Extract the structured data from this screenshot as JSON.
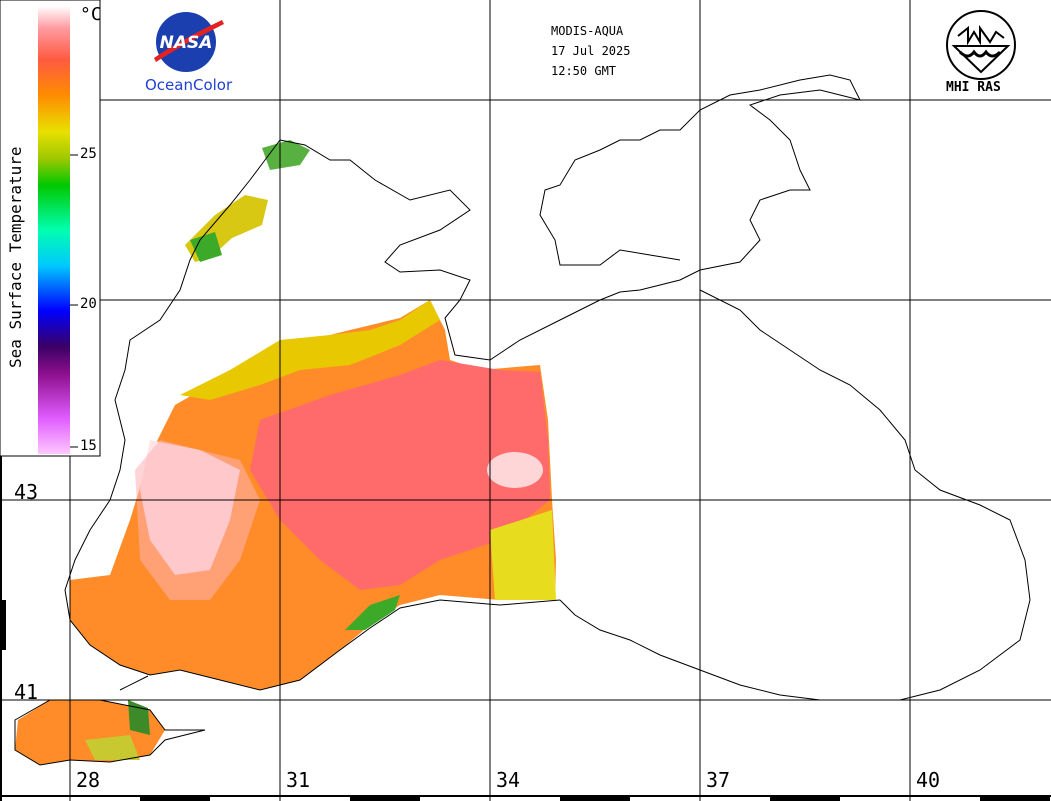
{
  "header": {
    "sensor": "MODIS-AQUA",
    "date": "17 Jul 2025",
    "time": "12:50 GMT"
  },
  "logos": {
    "nasa_text": "NASA",
    "oceancolor_label": "OceanColor",
    "mhi_label": "MHI RAS"
  },
  "colorbar": {
    "title": "Sea Surface Temperature",
    "unit": "°C",
    "ticks": [
      "25",
      "20",
      "15"
    ],
    "min": 15,
    "max": 29,
    "colors": [
      "#ffc8ff",
      "#e05cff",
      "#8c0f8c",
      "#3a0066",
      "#0000ff",
      "#00c8ff",
      "#00ffb0",
      "#00c800",
      "#a0c800",
      "#e8e000",
      "#ff8c00",
      "#ff5a40",
      "#ff9aa0",
      "#ffffff"
    ]
  },
  "grid": {
    "lon_labels": [
      "28",
      "31",
      "34",
      "37",
      "40"
    ],
    "lat_labels": [
      "43",
      "41"
    ]
  },
  "colors": {
    "sst_warm": "#ff8c28",
    "sst_hot": "#ff6a6a",
    "sst_max": "#ffe6e6",
    "sst_yellow": "#e8d200",
    "sst_green": "#3caa28",
    "coastline": "#000000"
  }
}
